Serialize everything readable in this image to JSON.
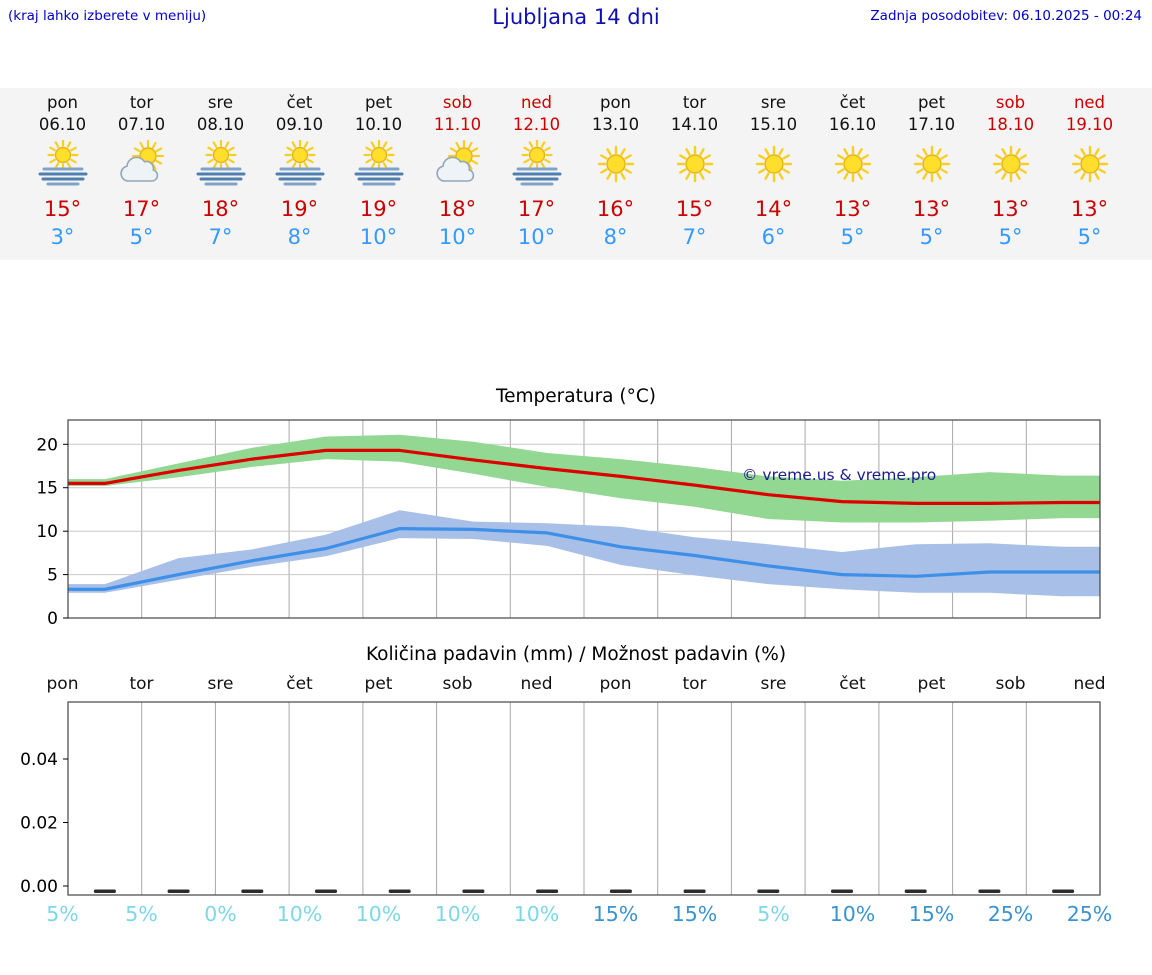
{
  "header": {
    "left_note": "(kraj lahko izberete v meniju)",
    "title": "Ljubljana 14 dni",
    "last_update": "Zadnja posodobitev: 06.10.2025 - 00:24"
  },
  "colors": {
    "header_text": "#0000cc",
    "title_text": "#0f0fb4",
    "weekend": "#cc0000",
    "temp_high": "#cc0000",
    "temp_low": "#3399ff"
  },
  "forecast": {
    "days": [
      {
        "name": "pon",
        "date": "06.10",
        "weekend": false,
        "icon": "sun-fog",
        "high": "15°",
        "low": "3°"
      },
      {
        "name": "tor",
        "date": "07.10",
        "weekend": false,
        "icon": "sun-cloud",
        "high": "17°",
        "low": "5°"
      },
      {
        "name": "sre",
        "date": "08.10",
        "weekend": false,
        "icon": "sun-fog",
        "high": "18°",
        "low": "7°"
      },
      {
        "name": "čet",
        "date": "09.10",
        "weekend": false,
        "icon": "sun-fog",
        "high": "19°",
        "low": "8°"
      },
      {
        "name": "pet",
        "date": "10.10",
        "weekend": false,
        "icon": "sun-fog",
        "high": "19°",
        "low": "10°"
      },
      {
        "name": "sob",
        "date": "11.10",
        "weekend": true,
        "icon": "sun-cloud",
        "high": "18°",
        "low": "10°"
      },
      {
        "name": "ned",
        "date": "12.10",
        "weekend": true,
        "icon": "sun-fog",
        "high": "17°",
        "low": "10°"
      },
      {
        "name": "pon",
        "date": "13.10",
        "weekend": false,
        "icon": "sun",
        "high": "16°",
        "low": "8°"
      },
      {
        "name": "tor",
        "date": "14.10",
        "weekend": false,
        "icon": "sun",
        "high": "15°",
        "low": "7°"
      },
      {
        "name": "sre",
        "date": "15.10",
        "weekend": false,
        "icon": "sun",
        "high": "14°",
        "low": "6°"
      },
      {
        "name": "čet",
        "date": "16.10",
        "weekend": false,
        "icon": "sun",
        "high": "13°",
        "low": "5°"
      },
      {
        "name": "pet",
        "date": "17.10",
        "weekend": false,
        "icon": "sun",
        "high": "13°",
        "low": "5°"
      },
      {
        "name": "sob",
        "date": "18.10",
        "weekend": true,
        "icon": "sun",
        "high": "13°",
        "low": "5°"
      },
      {
        "name": "ned",
        "date": "19.10",
        "weekend": true,
        "icon": "sun",
        "high": "13°",
        "low": "5°"
      }
    ]
  },
  "chart_data": [
    {
      "type": "area",
      "title": "Temperatura (°C)",
      "categories": [
        "pon",
        "tor",
        "sre",
        "čet",
        "pet",
        "sob",
        "ned",
        "pon",
        "tor",
        "sre",
        "čet",
        "pet",
        "sob",
        "ned"
      ],
      "yticks": [
        0,
        5,
        10,
        15,
        20
      ],
      "ylim": [
        0,
        22.8
      ],
      "grid": true,
      "watermark": "© vreme.us & vreme.pro",
      "series": [
        {
          "name": "temp-max",
          "color": "#dd0000",
          "values": [
            15.5,
            17.0,
            18.3,
            19.3,
            19.3,
            18.2,
            17.2,
            16.3,
            15.3,
            14.2,
            13.4,
            13.2,
            13.2,
            13.3
          ]
        },
        {
          "name": "temp-max-range-upper",
          "color": "#92d892",
          "values": [
            16.0,
            17.8,
            19.6,
            20.9,
            21.1,
            20.3,
            19.0,
            18.3,
            17.4,
            16.3,
            15.8,
            16.2,
            16.8,
            16.4
          ]
        },
        {
          "name": "temp-max-range-lower",
          "color": "#92d892",
          "values": [
            15.2,
            16.2,
            17.4,
            18.3,
            18.0,
            16.6,
            15.1,
            13.8,
            12.8,
            11.4,
            11.0,
            11.0,
            11.2,
            11.5
          ]
        },
        {
          "name": "temp-min",
          "color": "#3d8fe8",
          "values": [
            3.3,
            5.0,
            6.6,
            8.0,
            10.3,
            10.2,
            9.8,
            8.2,
            7.2,
            6.0,
            5.0,
            4.8,
            5.3,
            5.3
          ]
        },
        {
          "name": "temp-min-range-upper",
          "color": "#a8bfe8",
          "values": [
            3.9,
            6.9,
            7.9,
            9.6,
            12.4,
            11.1,
            10.9,
            10.5,
            9.3,
            8.5,
            7.6,
            8.5,
            8.6,
            8.2
          ]
        },
        {
          "name": "temp-min-range-lower",
          "color": "#a8bfe8",
          "values": [
            2.9,
            4.4,
            5.9,
            7.1,
            9.2,
            9.1,
            8.3,
            6.1,
            4.9,
            3.9,
            3.3,
            2.9,
            2.9,
            2.5
          ]
        }
      ]
    },
    {
      "type": "bar",
      "title": "Količina padavin (mm) / Možnost padavin (%)",
      "day_labels": [
        "pon",
        "tor",
        "sre",
        "čet",
        "pet",
        "sob",
        "ned",
        "pon",
        "tor",
        "sre",
        "čet",
        "pet",
        "sob",
        "ned"
      ],
      "yticks": [
        "0.00",
        "0.02",
        "0.04"
      ],
      "ylim": [
        0,
        0.057
      ],
      "values_mm": [
        0,
        0,
        0,
        0,
        0,
        0,
        0,
        0,
        0,
        0,
        0,
        0,
        0,
        0
      ],
      "percent_labels": [
        {
          "text": "5%",
          "color": "#7dd7e6"
        },
        {
          "text": "5%",
          "color": "#7dd7e6"
        },
        {
          "text": "0%",
          "color": "#7dd7e6"
        },
        {
          "text": "10%",
          "color": "#7dd7e6"
        },
        {
          "text": "10%",
          "color": "#7dd7e6"
        },
        {
          "text": "10%",
          "color": "#7dd7e6"
        },
        {
          "text": "10%",
          "color": "#7dd7e6"
        },
        {
          "text": "15%",
          "color": "#3a93cf"
        },
        {
          "text": "15%",
          "color": "#3a93cf"
        },
        {
          "text": "5%",
          "color": "#7dd7e6"
        },
        {
          "text": "10%",
          "color": "#3a93cf"
        },
        {
          "text": "15%",
          "color": "#3a93cf"
        },
        {
          "text": "25%",
          "color": "#3a93cf"
        },
        {
          "text": "25%",
          "color": "#3a93cf"
        }
      ]
    }
  ]
}
